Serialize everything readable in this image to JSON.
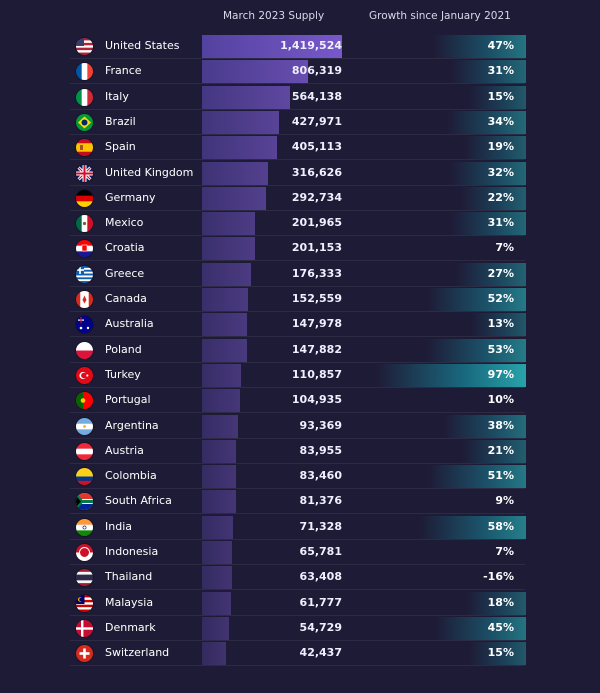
{
  "headers": {
    "supply": "March 2023 Supply",
    "growth": "Growth since January 2021"
  },
  "chart_data": {
    "type": "table",
    "columns": [
      "March 2023 Supply",
      "Growth since January 2021"
    ],
    "rows": [
      {
        "country": "United States",
        "supply": 1419524,
        "supply_label": "1,419,524",
        "growth": 47,
        "growth_label": "47%",
        "flag": "flag-united-states-icon"
      },
      {
        "country": "France",
        "supply": 806319,
        "supply_label": "806,319",
        "growth": 31,
        "growth_label": "31%",
        "flag": "flag-france-icon"
      },
      {
        "country": "Italy",
        "supply": 564138,
        "supply_label": "564,138",
        "growth": 15,
        "growth_label": "15%",
        "flag": "flag-italy-icon"
      },
      {
        "country": "Brazil",
        "supply": 427971,
        "supply_label": "427,971",
        "growth": 34,
        "growth_label": "34%",
        "flag": "flag-brazil-icon"
      },
      {
        "country": "Spain",
        "supply": 405113,
        "supply_label": "405,113",
        "growth": 19,
        "growth_label": "19%",
        "flag": "flag-spain-icon"
      },
      {
        "country": "United Kingdom",
        "supply": 316626,
        "supply_label": "316,626",
        "growth": 32,
        "growth_label": "32%",
        "flag": "flag-united-kingdom-icon"
      },
      {
        "country": "Germany",
        "supply": 292734,
        "supply_label": "292,734",
        "growth": 22,
        "growth_label": "22%",
        "flag": "flag-germany-icon"
      },
      {
        "country": "Mexico",
        "supply": 201965,
        "supply_label": "201,965",
        "growth": 31,
        "growth_label": "31%",
        "flag": "flag-mexico-icon"
      },
      {
        "country": "Croatia",
        "supply": 201153,
        "supply_label": "201,153",
        "growth": 7,
        "growth_label": "7%",
        "flag": "flag-croatia-icon"
      },
      {
        "country": "Greece",
        "supply": 176333,
        "supply_label": "176,333",
        "growth": 27,
        "growth_label": "27%",
        "flag": "flag-greece-icon"
      },
      {
        "country": "Canada",
        "supply": 152559,
        "supply_label": "152,559",
        "growth": 52,
        "growth_label": "52%",
        "flag": "flag-canada-icon"
      },
      {
        "country": "Australia",
        "supply": 147978,
        "supply_label": "147,978",
        "growth": 13,
        "growth_label": "13%",
        "flag": "flag-australia-icon"
      },
      {
        "country": "Poland",
        "supply": 147882,
        "supply_label": "147,882",
        "growth": 53,
        "growth_label": "53%",
        "flag": "flag-poland-icon"
      },
      {
        "country": "Turkey",
        "supply": 110857,
        "supply_label": "110,857",
        "growth": 97,
        "growth_label": "97%",
        "flag": "flag-turkey-icon"
      },
      {
        "country": "Portugal",
        "supply": 104935,
        "supply_label": "104,935",
        "growth": 10,
        "growth_label": "10%",
        "flag": "flag-portugal-icon"
      },
      {
        "country": "Argentina",
        "supply": 93369,
        "supply_label": "93,369",
        "growth": 38,
        "growth_label": "38%",
        "flag": "flag-argentina-icon"
      },
      {
        "country": "Austria",
        "supply": 83955,
        "supply_label": "83,955",
        "growth": 21,
        "growth_label": "21%",
        "flag": "flag-austria-icon"
      },
      {
        "country": "Colombia",
        "supply": 83460,
        "supply_label": "83,460",
        "growth": 51,
        "growth_label": "51%",
        "flag": "flag-colombia-icon"
      },
      {
        "country": "South Africa",
        "supply": 81376,
        "supply_label": "81,376",
        "growth": 9,
        "growth_label": "9%",
        "flag": "flag-south-africa-icon"
      },
      {
        "country": "India",
        "supply": 71328,
        "supply_label": "71,328",
        "growth": 58,
        "growth_label": "58%",
        "flag": "flag-india-icon"
      },
      {
        "country": "Indonesia",
        "supply": 65781,
        "supply_label": "65,781",
        "growth": 7,
        "growth_label": "7%",
        "flag": "flag-indonesia-icon"
      },
      {
        "country": "Thailand",
        "supply": 63408,
        "supply_label": "63,408",
        "growth": -16,
        "growth_label": "-16%",
        "flag": "flag-thailand-icon"
      },
      {
        "country": "Malaysia",
        "supply": 61777,
        "supply_label": "61,777",
        "growth": 18,
        "growth_label": "18%",
        "flag": "flag-malaysia-icon"
      },
      {
        "country": "Denmark",
        "supply": 54729,
        "supply_label": "54,729",
        "growth": 45,
        "growth_label": "45%",
        "flag": "flag-denmark-icon"
      },
      {
        "country": "Switzerland",
        "supply": 42437,
        "supply_label": "42,437",
        "growth": 15,
        "growth_label": "15%",
        "flag": "flag-switzerland-icon"
      }
    ],
    "supply_max": 1419524,
    "growth_max": 97
  },
  "colors": {
    "background": "#1e1b36",
    "supply_bar": "#7c5cd2",
    "growth_bar": "#28aaaf"
  }
}
